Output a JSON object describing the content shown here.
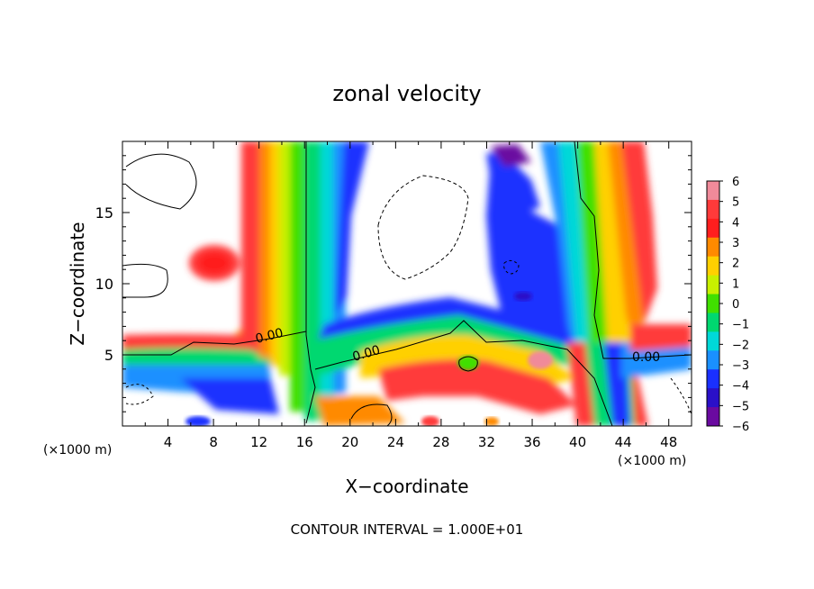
{
  "chart_data": {
    "type": "heatmap",
    "title": "zonal velocity",
    "xlabel": "X−coordinate",
    "ylabel": "Z−coordinate",
    "x_unit_left": "(×1000 m)",
    "x_unit_right": "(×1000 m)",
    "footer": "CONTOUR INTERVAL = 1.000E+01",
    "xlim": [
      0,
      50
    ],
    "ylim": [
      0,
      20
    ],
    "x_ticks": [
      "4",
      "8",
      "12",
      "16",
      "20",
      "24",
      "28",
      "32",
      "36",
      "40",
      "44",
      "48"
    ],
    "y_ticks": [
      "5",
      "10",
      "15"
    ],
    "colorbar": {
      "range": [
        -6,
        6
      ],
      "labels": [
        "6",
        "5",
        "4",
        "3",
        "2",
        "1",
        "0",
        "−1",
        "−2",
        "−3",
        "−4",
        "−5",
        "−6"
      ],
      "colors": [
        "#f08a9a",
        "#ff3a3a",
        "#ff1e1e",
        "#ff8a00",
        "#ffd000",
        "#c8f000",
        "#40e000",
        "#00d870",
        "#00d8d8",
        "#1a90ff",
        "#1a30ff",
        "#2a10c8",
        "#6a0aa0"
      ]
    },
    "contour_labels": [
      "0.00",
      "0.00",
      "0.00"
    ],
    "contour_interval": 10,
    "grid": false,
    "legend_position": "right"
  }
}
